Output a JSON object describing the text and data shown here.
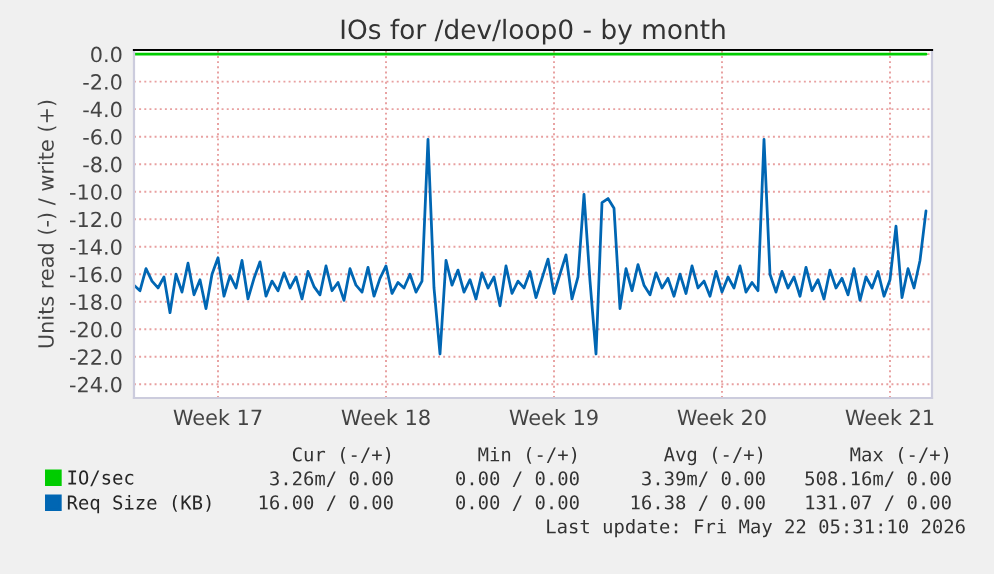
{
  "chart_data": {
    "type": "line",
    "title": "IOs for /dev/loop0 - by month",
    "ylabel": "Units read (-) / write (+)",
    "categories": [
      null,
      null,
      null,
      null,
      null,
      null,
      null,
      null,
      null,
      null,
      null,
      null,
      null,
      null,
      "Week 17",
      null,
      null,
      null,
      null,
      null,
      null,
      null,
      null,
      null,
      null,
      null,
      null,
      null,
      null,
      null,
      null,
      null,
      null,
      null,
      null,
      null,
      null,
      null,
      null,
      null,
      null,
      null,
      "Week 18",
      null,
      null,
      null,
      null,
      null,
      null,
      null,
      null,
      null,
      null,
      null,
      null,
      null,
      null,
      null,
      null,
      null,
      null,
      null,
      null,
      null,
      null,
      null,
      null,
      null,
      null,
      null,
      "Week 19",
      null,
      null,
      null,
      null,
      null,
      null,
      null,
      null,
      null,
      null,
      null,
      null,
      null,
      null,
      null,
      null,
      null,
      null,
      null,
      null,
      null,
      null,
      null,
      null,
      null,
      null,
      null,
      "Week 20",
      null,
      null,
      null,
      null,
      null,
      null,
      null,
      null,
      null,
      null,
      null,
      null,
      null,
      null,
      null,
      null,
      null,
      null,
      null,
      null,
      null,
      null,
      null,
      null,
      null,
      null,
      null,
      "Week 21",
      null,
      null,
      null,
      null,
      null,
      null
    ],
    "ylim": [
      -25,
      0.3
    ],
    "yticks": [
      {
        "value": 0,
        "label": "0.0"
      },
      {
        "value": -2,
        "label": "-2.0"
      },
      {
        "value": -4,
        "label": "-4.0"
      },
      {
        "value": -6,
        "label": "-6.0"
      },
      {
        "value": -8,
        "label": "-8.0"
      },
      {
        "value": -10,
        "label": "-10.0"
      },
      {
        "value": -12,
        "label": "-12.0"
      },
      {
        "value": -14,
        "label": "-14.0"
      },
      {
        "value": -16,
        "label": "-16.0"
      },
      {
        "value": -18,
        "label": "-18.0"
      },
      {
        "value": -20,
        "label": "-20.0"
      },
      {
        "value": -22,
        "label": "-22.0"
      },
      {
        "value": -24,
        "label": "-24.0"
      }
    ],
    "grid": true,
    "legend": "bottom",
    "series": [
      {
        "name": "IO/sec",
        "color": "#00cc00",
        "values": [
          0,
          0,
          0,
          0,
          0,
          0,
          0,
          0,
          0,
          0,
          0,
          0,
          0,
          0,
          0,
          0,
          0,
          0,
          0,
          0,
          0,
          0,
          0,
          0,
          0,
          0,
          0,
          0,
          0,
          0,
          0,
          0,
          0,
          0,
          0,
          0,
          0,
          0,
          0,
          0,
          0,
          0,
          0,
          0,
          0,
          0,
          0,
          0,
          0,
          0,
          0,
          0,
          0,
          0,
          0,
          0,
          0,
          0,
          0,
          0,
          0,
          0,
          0,
          0,
          0,
          0,
          0,
          0,
          0,
          0,
          0,
          0,
          0,
          0,
          0,
          0,
          0,
          0,
          0,
          0,
          0,
          0,
          0,
          0,
          0,
          0,
          0,
          0,
          0,
          0,
          0,
          0,
          0,
          0,
          0,
          0,
          0,
          0,
          0,
          0,
          0,
          0,
          0,
          0,
          0,
          0,
          0,
          0,
          0,
          0,
          0,
          0,
          0,
          0,
          0,
          0,
          0,
          0,
          0,
          0,
          0,
          0,
          0,
          0,
          0,
          0,
          0,
          0,
          0,
          0,
          0,
          0,
          0
        ]
      },
      {
        "name": "Req Size (KB)",
        "color": "#0066b3",
        "values": [
          -16.8,
          -17.2,
          -15.6,
          -16.5,
          -17.0,
          -16.2,
          -18.8,
          -16.0,
          -17.3,
          -15.2,
          -17.5,
          -16.4,
          -18.5,
          -16.0,
          -14.8,
          -17.6,
          -16.1,
          -17.0,
          -15.0,
          -17.8,
          -16.3,
          -15.1,
          -17.6,
          -16.5,
          -17.2,
          -15.9,
          -17.0,
          -16.2,
          -17.8,
          -15.8,
          -16.9,
          -17.5,
          -15.4,
          -17.2,
          -16.6,
          -17.9,
          -15.6,
          -16.8,
          -17.3,
          -15.5,
          -17.6,
          -16.3,
          -15.4,
          -17.4,
          -16.6,
          -17.0,
          -16.0,
          -17.3,
          -16.5,
          -6.2,
          -17.0,
          -21.8,
          -15.0,
          -16.8,
          -15.7,
          -17.3,
          -16.4,
          -17.8,
          -15.9,
          -17.0,
          -16.2,
          -18.3,
          -15.4,
          -17.4,
          -16.5,
          -17.0,
          -15.8,
          -17.7,
          -16.3,
          -14.9,
          -17.4,
          -16.0,
          -14.6,
          -17.8,
          -16.2,
          -10.2,
          -16.5,
          -21.8,
          -10.8,
          -10.5,
          -11.2,
          -18.5,
          -15.6,
          -17.2,
          -15.3,
          -16.8,
          -17.5,
          -15.9,
          -17.0,
          -16.3,
          -17.6,
          -16.0,
          -17.4,
          -15.4,
          -17.0,
          -16.5,
          -17.6,
          -15.8,
          -17.3,
          -16.2,
          -17.0,
          -15.4,
          -17.3,
          -16.6,
          -17.2,
          -6.2,
          -16.0,
          -17.3,
          -15.8,
          -17.0,
          -16.2,
          -17.6,
          -15.5,
          -17.2,
          -16.4,
          -17.8,
          -15.7,
          -17.0,
          -16.3,
          -17.5,
          -15.6,
          -17.9,
          -16.2,
          -17.0,
          -15.8,
          -17.6,
          -16.4,
          -12.5,
          -17.7,
          -15.6,
          -17.0,
          -15.0,
          -11.4
        ]
      }
    ],
    "annotations": [
      "Cur (-/+)",
      "Min (-/+)",
      "Avg (-/+)",
      "Max (-/+)",
      "3.26m/ 0.00",
      "0.00 / 0.00",
      "3.39m/ 0.00",
      "508.16m/ 0.00",
      "16.00 / 0.00",
      "0.00 / 0.00",
      "16.38 / 0.00",
      "131.07 / 0.00",
      "Last update: Fri May 22 05:31:10 2026"
    ]
  }
}
